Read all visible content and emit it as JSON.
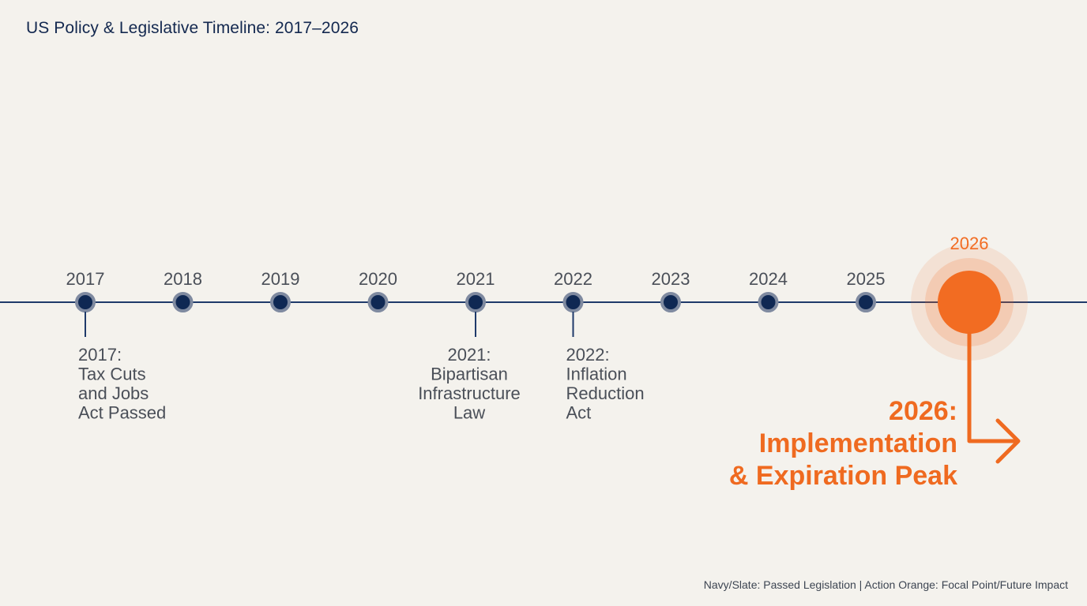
{
  "title": "US Policy & Legislative Timeline: 2017–2026",
  "colors": {
    "navy": "#0f2853",
    "slate_ring": "#7f8aa0",
    "line": "#1f3a6a",
    "orange": "#f26c22",
    "text": "#4a4f58"
  },
  "years": [
    "2017",
    "2018",
    "2019",
    "2020",
    "2021",
    "2022",
    "2023",
    "2024",
    "2025"
  ],
  "focal_year": "2026",
  "events": [
    {
      "year": "2017",
      "lines": [
        "2017:",
        "Tax Cuts",
        "and Jobs",
        "Act Passed"
      ],
      "align": "left"
    },
    {
      "year": "2021",
      "lines": [
        "2021:",
        "Bipartisan",
        "Infrastructure",
        "Law"
      ],
      "align": "center"
    },
    {
      "year": "2022",
      "lines": [
        "2022:",
        "Inflation",
        "Reduction",
        "Act"
      ],
      "align": "left"
    }
  ],
  "focal_event": {
    "lines": [
      "2026:",
      "Implementation",
      "& Expiration Peak"
    ]
  },
  "footnote": "Navy/Slate: Passed Legislation | Action Orange: Focal Point/Future Impact"
}
